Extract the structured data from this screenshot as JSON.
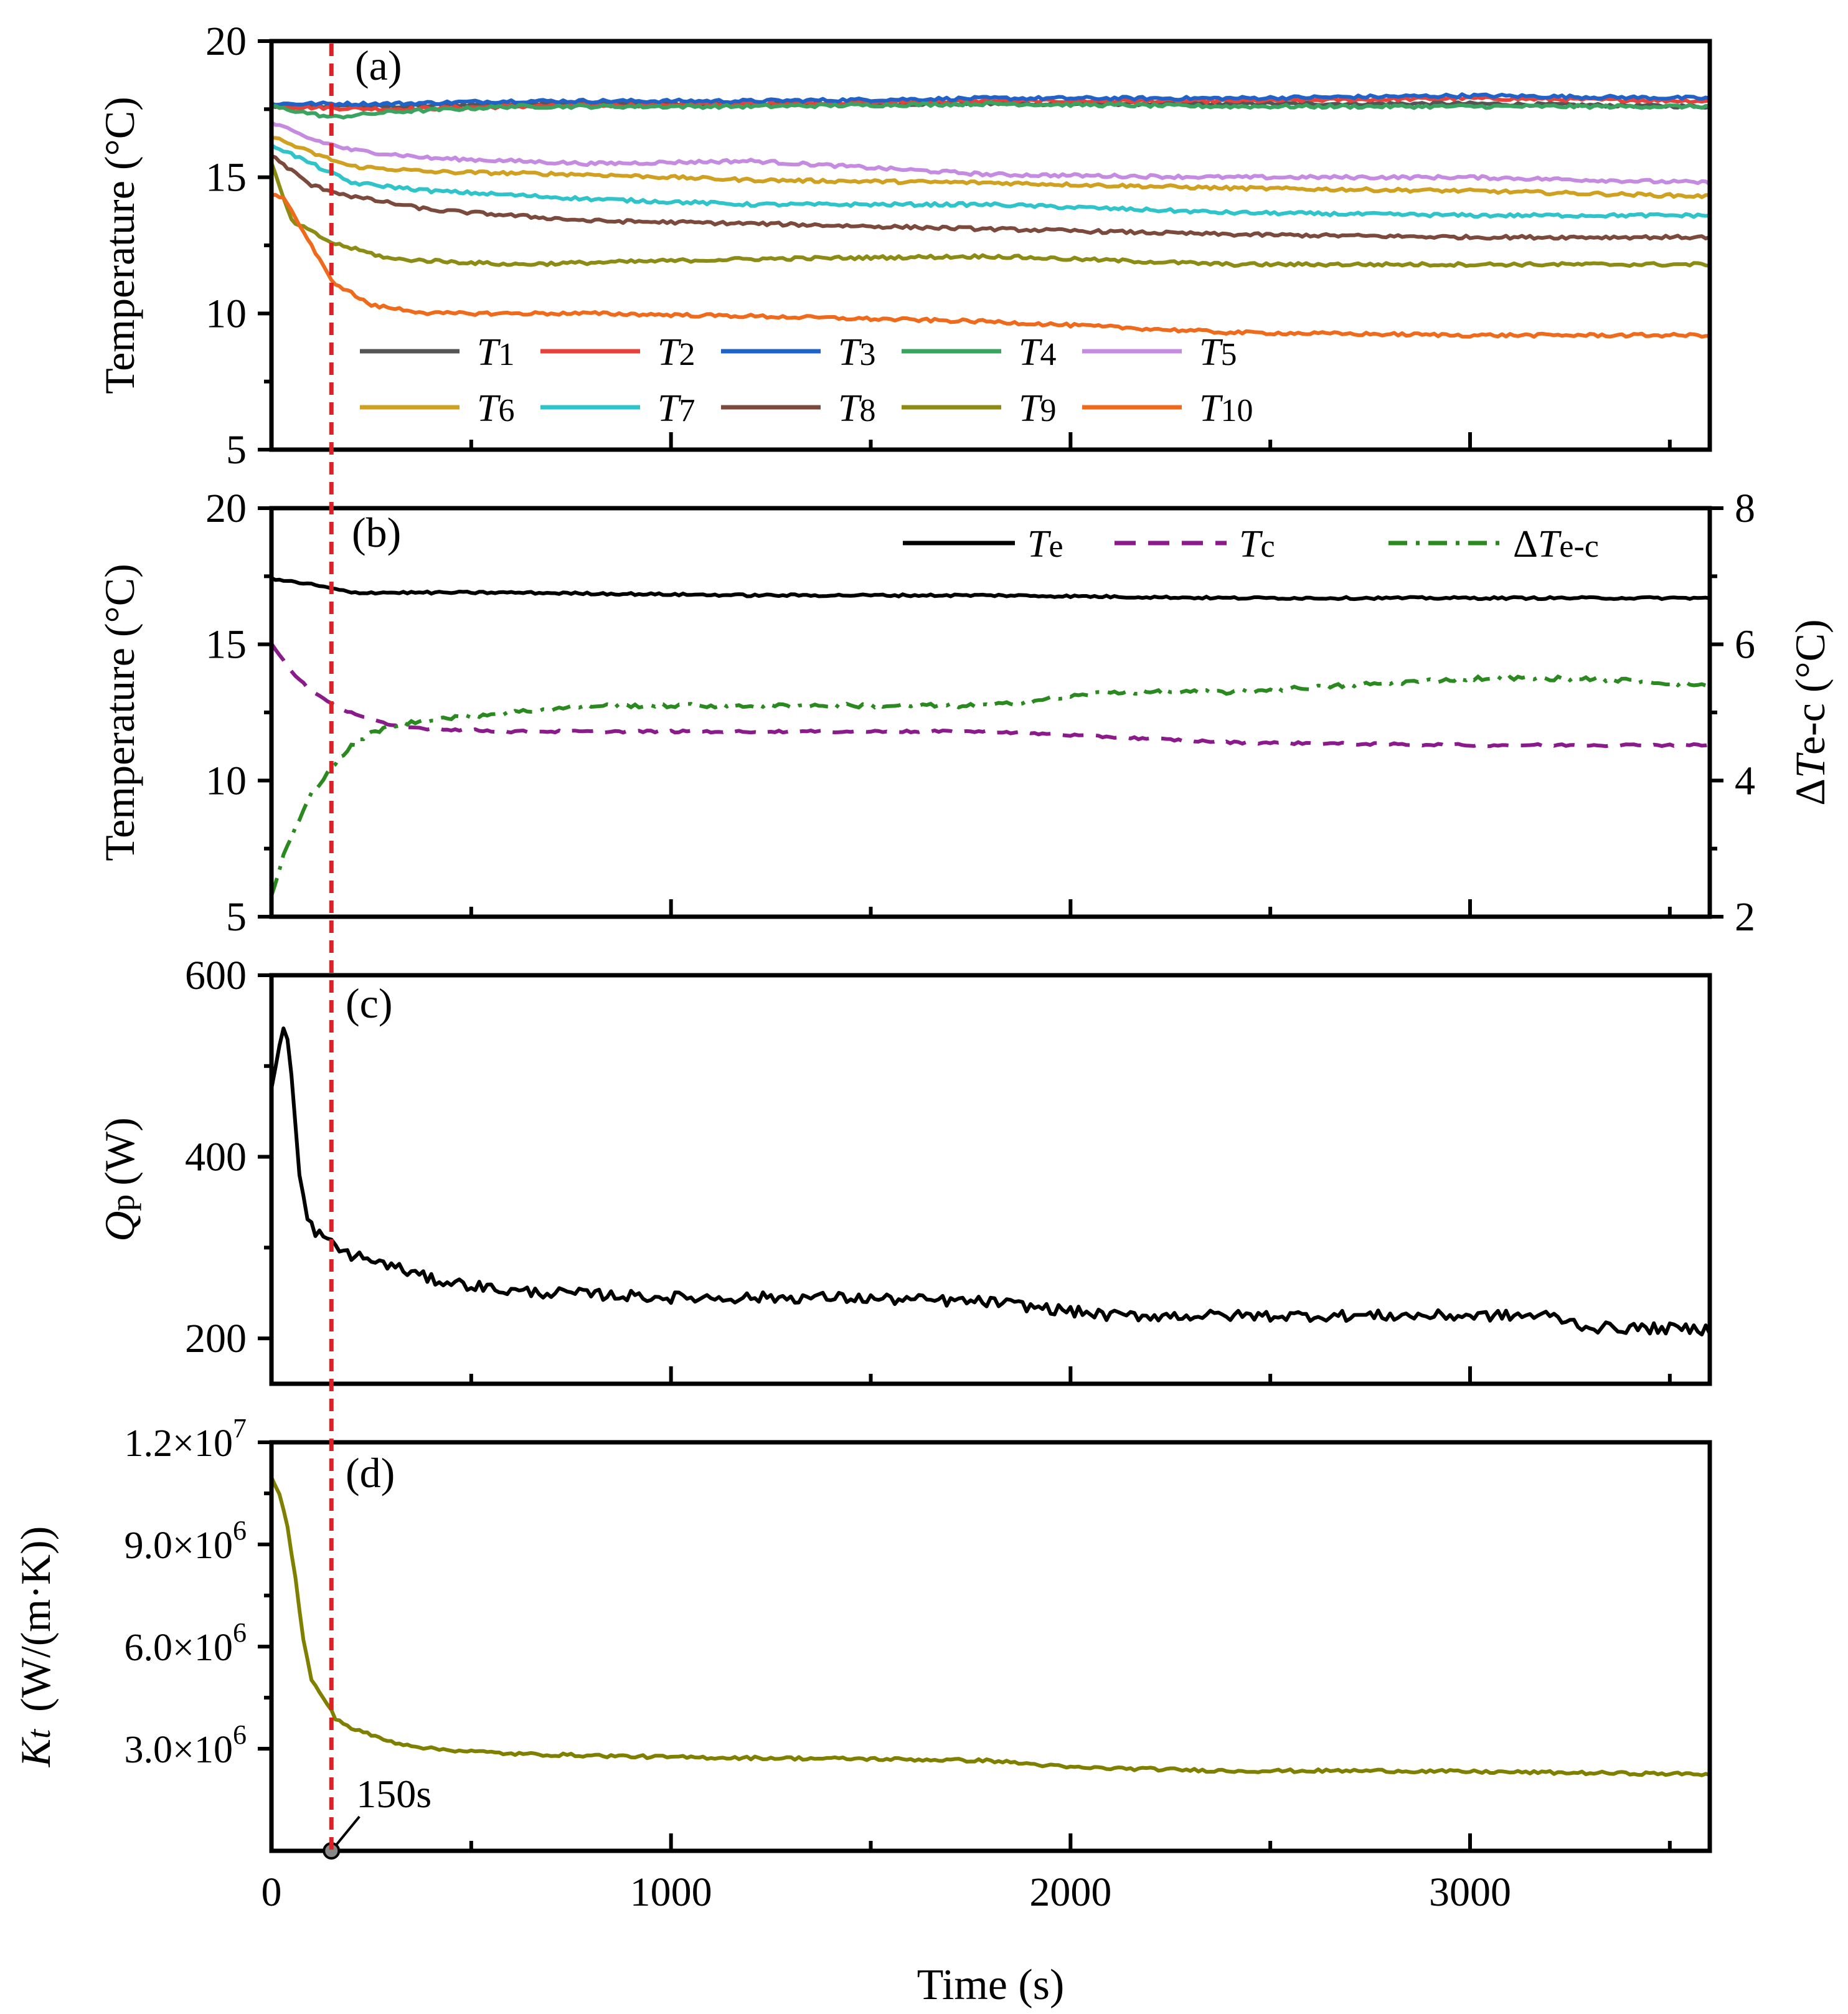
{
  "chart_data": [
    {
      "id": "a",
      "type": "line",
      "panel_label": "(a)",
      "ylabel": "Temperature (°C)",
      "xlabel": "",
      "xlim": [
        0,
        3600
      ],
      "ylim": [
        5,
        20
      ],
      "yticks": [
        5,
        10,
        15,
        20
      ],
      "series": [
        {
          "name": "T1",
          "sub": "1",
          "color": "#555555",
          "x": [
            0,
            300,
            600,
            1200,
            1800,
            2400,
            3000,
            3600
          ],
          "y": [
            17.6,
            17.6,
            17.7,
            17.7,
            17.7,
            17.7,
            17.7,
            17.6
          ]
        },
        {
          "name": "T2",
          "sub": "2",
          "color": "#e8413a",
          "x": [
            0,
            300,
            600,
            1200,
            1800,
            2400,
            3000,
            3600
          ],
          "y": [
            17.6,
            17.5,
            17.6,
            17.7,
            17.8,
            17.8,
            17.9,
            17.8
          ]
        },
        {
          "name": "T3",
          "sub": "3",
          "color": "#2063c8",
          "x": [
            0,
            300,
            600,
            1200,
            1800,
            2400,
            3000,
            3600
          ],
          "y": [
            17.7,
            17.7,
            17.8,
            17.8,
            17.9,
            17.9,
            18.0,
            17.9
          ]
        },
        {
          "name": "T4",
          "sub": "4",
          "color": "#3aa35f",
          "x": [
            0,
            150,
            300,
            600,
            1200,
            1800,
            2400,
            3000,
            3600
          ],
          "y": [
            17.6,
            17.2,
            17.4,
            17.6,
            17.6,
            17.7,
            17.6,
            17.6,
            17.6
          ]
        },
        {
          "name": "T5",
          "sub": "5",
          "color": "#c58be0",
          "x": [
            0,
            100,
            200,
            400,
            800,
            1200,
            1800,
            2400,
            3000,
            3600
          ],
          "y": [
            17.0,
            16.4,
            16.0,
            15.7,
            15.5,
            15.6,
            15.1,
            15.0,
            15.0,
            14.8
          ]
        },
        {
          "name": "T6",
          "sub": "6",
          "color": "#d0a020",
          "x": [
            0,
            100,
            200,
            400,
            800,
            1200,
            1800,
            2400,
            3000,
            3600
          ],
          "y": [
            16.5,
            15.9,
            15.4,
            15.2,
            15.1,
            14.9,
            14.8,
            14.6,
            14.5,
            14.3
          ]
        },
        {
          "name": "T7",
          "sub": "7",
          "color": "#2ec4c9",
          "x": [
            0,
            100,
            200,
            400,
            800,
            1200,
            1800,
            2400,
            3000,
            3600
          ],
          "y": [
            16.2,
            15.5,
            14.8,
            14.5,
            14.2,
            14.0,
            14.0,
            13.7,
            13.6,
            13.6
          ]
        },
        {
          "name": "T8",
          "sub": "8",
          "color": "#7b4a3c",
          "x": [
            0,
            100,
            200,
            400,
            800,
            1200,
            1800,
            2400,
            3000,
            3600
          ],
          "y": [
            15.8,
            14.7,
            14.3,
            13.8,
            13.4,
            13.3,
            13.1,
            12.9,
            12.8,
            12.8
          ]
        },
        {
          "name": "T9",
          "sub": "9",
          "color": "#8c8c14",
          "x": [
            0,
            50,
            150,
            300,
            600,
            900,
            1200,
            1800,
            2400,
            3000,
            3600
          ],
          "y": [
            15.5,
            13.4,
            12.6,
            12.0,
            11.8,
            11.9,
            12.0,
            12.1,
            11.8,
            11.8,
            11.8
          ]
        },
        {
          "name": "T10",
          "sub": "10",
          "color": "#f06a1c",
          "x": [
            0,
            30,
            80,
            150,
            250,
            400,
            800,
            1200,
            1800,
            2400,
            3000,
            3600
          ],
          "y": [
            14.3,
            14.3,
            13.0,
            11.2,
            10.3,
            10.0,
            10.0,
            9.9,
            9.7,
            9.3,
            9.2,
            9.2
          ]
        }
      ]
    },
    {
      "id": "b",
      "type": "line",
      "panel_label": "(b)",
      "ylabel": "Temperature (°C)",
      "y2label": "ΔTe-c (°C)",
      "xlim": [
        0,
        3600
      ],
      "ylim": [
        5,
        20
      ],
      "yticks": [
        5,
        10,
        15,
        20
      ],
      "y2lim": [
        2,
        8
      ],
      "y2ticks": [
        2,
        4,
        6,
        8
      ],
      "series": [
        {
          "name": "Te",
          "sub": "e",
          "axis": "left",
          "color": "#000000",
          "dash": "",
          "x": [
            0,
            100,
            200,
            300,
            600,
            1200,
            1800,
            2400,
            3000,
            3600
          ],
          "y": [
            17.4,
            17.2,
            16.9,
            16.9,
            16.9,
            16.8,
            16.8,
            16.7,
            16.7,
            16.7
          ]
        },
        {
          "name": "Tc",
          "sub": "c",
          "axis": "left",
          "color": "#8b1a8b",
          "dash": "dash",
          "x": [
            0,
            50,
            100,
            150,
            200,
            300,
            400,
            600,
            1200,
            1800,
            2400,
            3000,
            3600
          ],
          "y": [
            15.0,
            14.0,
            13.3,
            12.8,
            12.5,
            12.0,
            11.9,
            11.8,
            11.8,
            11.8,
            11.4,
            11.3,
            11.3
          ]
        },
        {
          "name": "ΔTe-c",
          "sub": "e-c",
          "axis": "right",
          "color": "#2a8a1f",
          "dash": "dashdot",
          "x": [
            0,
            30,
            60,
            100,
            150,
            200,
            250,
            300,
            400,
            600,
            800,
            1200,
            1500,
            1800,
            2100,
            2400,
            2700,
            3000,
            3300,
            3600
          ],
          "y": [
            2.3,
            2.9,
            3.3,
            3.8,
            4.2,
            4.5,
            4.7,
            4.8,
            4.9,
            5.0,
            5.1,
            5.1,
            5.1,
            5.1,
            5.3,
            5.3,
            5.4,
            5.5,
            5.5,
            5.4
          ]
        }
      ]
    },
    {
      "id": "c",
      "type": "line",
      "panel_label": "(c)",
      "ylabel": "Qp (W)",
      "ylabel_main": "Q",
      "ylabel_sub": "p",
      "ylabel_unit": "(W)",
      "xlim": [
        0,
        3600
      ],
      "ylim": [
        150,
        600
      ],
      "yticks": [
        200,
        400,
        600
      ],
      "series": [
        {
          "name": "Qp",
          "color": "#000000",
          "x": [
            0,
            15,
            30,
            45,
            55,
            70,
            90,
            110,
            130,
            160,
            200,
            300,
            400,
            600,
            1000,
            1400,
            1800,
            2100,
            2400,
            2800,
            3200,
            3300,
            3600
          ],
          "y": [
            470,
            520,
            540,
            520,
            460,
            380,
            330,
            318,
            312,
            300,
            292,
            280,
            265,
            252,
            245,
            245,
            240,
            225,
            225,
            225,
            225,
            212,
            210
          ]
        }
      ]
    },
    {
      "id": "d",
      "type": "line",
      "panel_label": "(d)",
      "ylabel": "Kt (W/(m·K))",
      "ylabel_main": "K",
      "ylabel_sub": "t",
      "ylabel_unit": "(W/(m·K))",
      "xlabel": "Time (s)",
      "xlim": [
        0,
        3600
      ],
      "xticks": [
        0,
        1000,
        2000,
        3000
      ],
      "ylim": [
        0,
        12000000
      ],
      "yticks": [
        3000000,
        6000000,
        9000000,
        12000000
      ],
      "ytick_labels": [
        {
          "mant": "3.0×10",
          "exp": "6"
        },
        {
          "mant": "6.0×10",
          "exp": "6"
        },
        {
          "mant": "9.0×10",
          "exp": "6"
        },
        {
          "mant": "1.2×10",
          "exp": "7"
        }
      ],
      "annotation": "150s",
      "series": [
        {
          "name": "Kt",
          "color": "#808000",
          "x": [
            0,
            20,
            40,
            60,
            80,
            100,
            130,
            160,
            200,
            300,
            400,
            600,
            1000,
            1500,
            1800,
            2000,
            2400,
            2800,
            3200,
            3600
          ],
          "y": [
            11000000,
            10500000,
            9500000,
            8000000,
            6200000,
            5000000,
            4500000,
            3900000,
            3600000,
            3200000,
            3000000,
            2850000,
            2750000,
            2700000,
            2650000,
            2450000,
            2350000,
            2350000,
            2300000,
            2250000
          ]
        }
      ]
    }
  ],
  "marker_time": 150
}
